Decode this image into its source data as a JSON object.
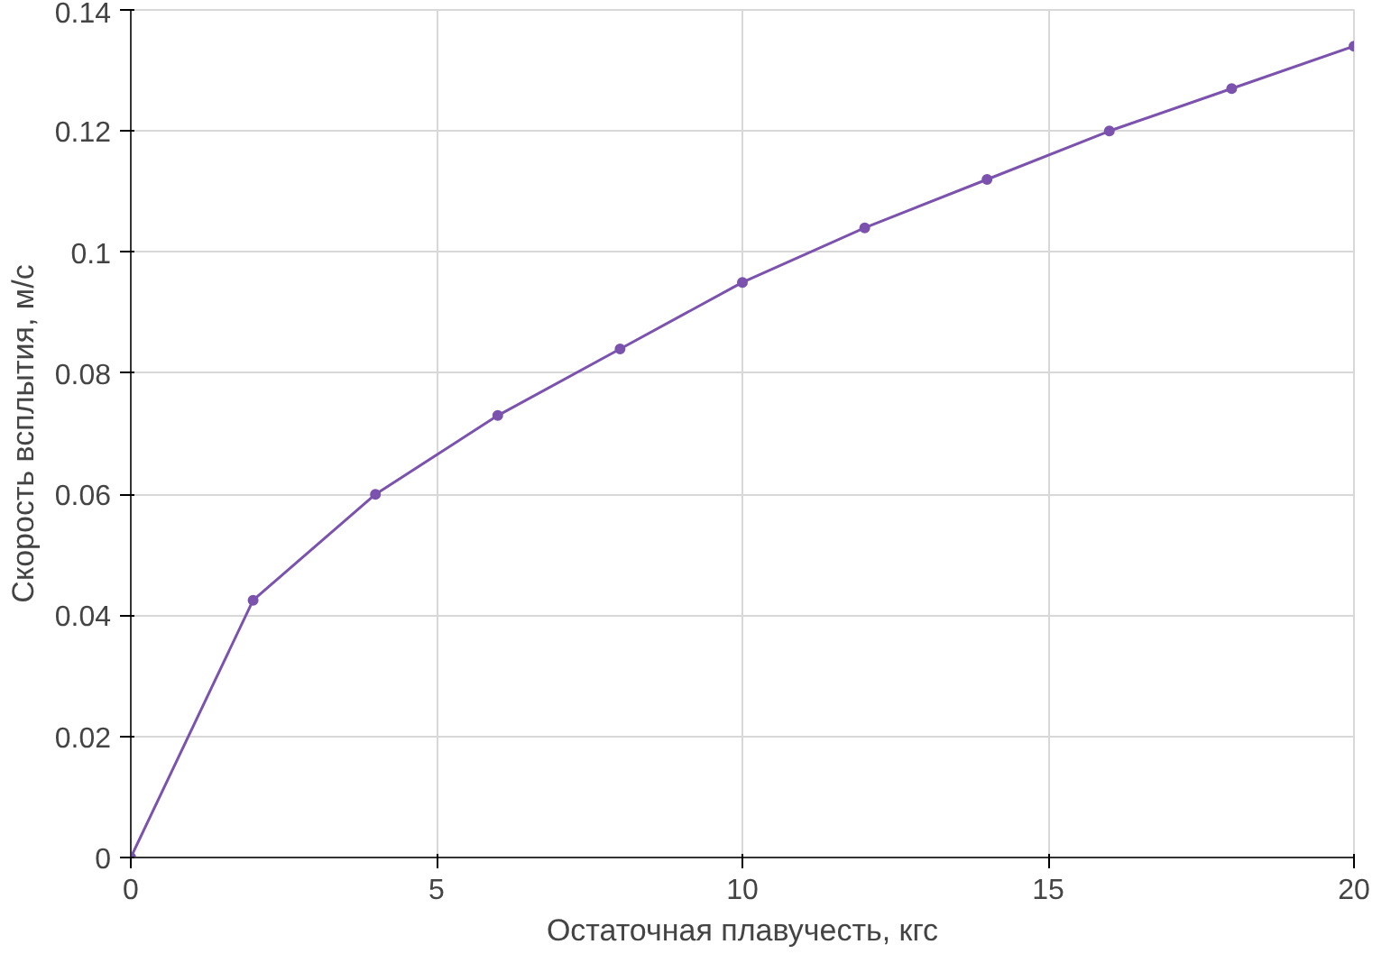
{
  "chart_data": {
    "type": "line",
    "xlabel": "Остаточная плавучесть, кгс",
    "ylabel": "Скорость всплытия, м/с",
    "x": [
      0,
      2,
      4,
      6,
      8,
      10,
      12,
      14,
      16,
      18,
      20
    ],
    "series": [
      {
        "color": "#7b52ae",
        "values": [
          0,
          0.0425,
          0.06,
          0.073,
          0.084,
          0.095,
          0.104,
          0.112,
          0.12,
          0.127,
          0.134
        ]
      }
    ],
    "xlim": [
      0,
      20
    ],
    "xticks": [
      0,
      5,
      10,
      15,
      20
    ],
    "ylim": [
      0,
      0.14
    ],
    "yticks": [
      0,
      0.02,
      0.04,
      0.06,
      0.08,
      0.1,
      0.12,
      0.14
    ],
    "grid": true,
    "marker": "circle",
    "line_style": "solid"
  }
}
